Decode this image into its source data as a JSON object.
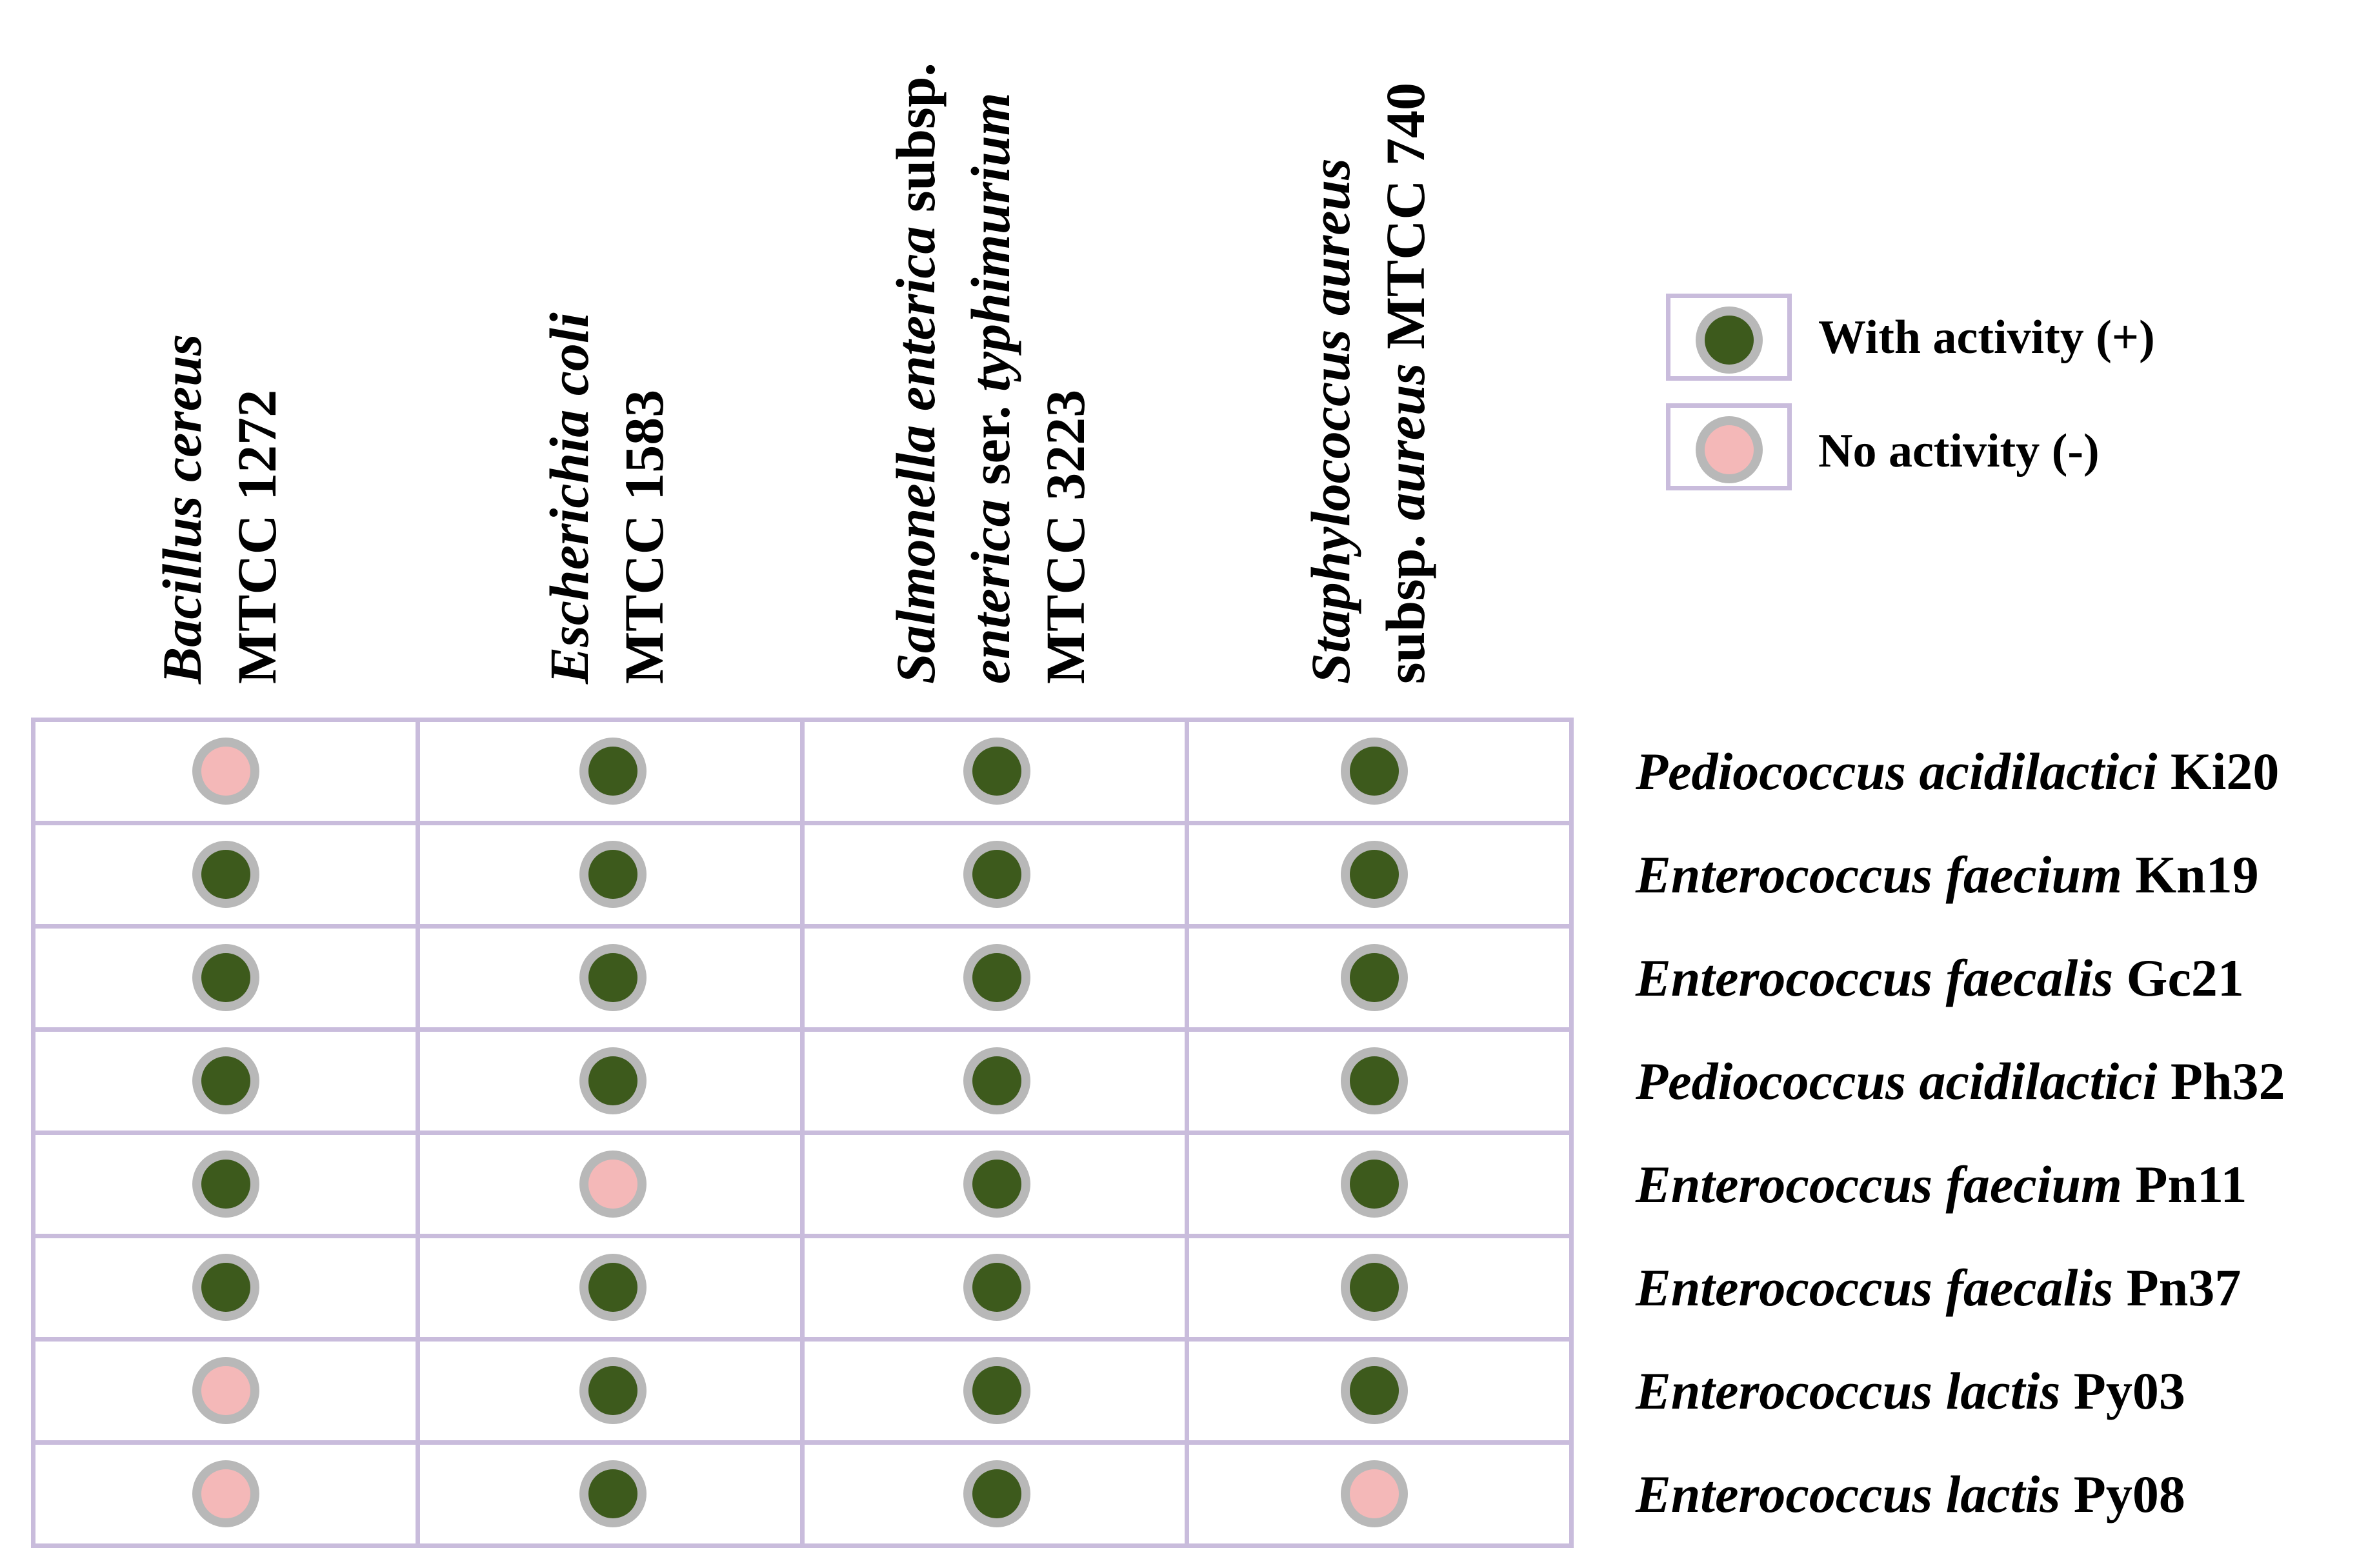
{
  "columns": [
    {
      "lines": [
        [
          {
            "t": "Bacillus cereus",
            "i": true
          }
        ],
        [
          {
            "t": "MTCC 1272",
            "i": false
          }
        ]
      ]
    },
    {
      "lines": [
        [
          {
            "t": "Escherichia coli",
            "i": true
          }
        ],
        [
          {
            "t": "MTCC 1583",
            "i": false
          }
        ]
      ]
    },
    {
      "lines": [
        [
          {
            "t": "Salmonella enterica",
            "i": true
          },
          {
            "t": " subsp.",
            "i": false
          }
        ],
        [
          {
            "t": "enterica",
            "i": true
          },
          {
            "t": " ser. ",
            "i": false
          },
          {
            "t": "typhimurium",
            "i": true
          }
        ],
        [
          {
            "t": "MTCC 3223",
            "i": false
          }
        ]
      ]
    },
    {
      "lines": [
        [
          {
            "t": "Staphylococcus aureus",
            "i": true
          }
        ],
        [
          {
            "t": "subsp. ",
            "i": false
          },
          {
            "t": "aureus",
            "i": true
          },
          {
            "t": " MTCC 740",
            "i": false
          }
        ]
      ]
    }
  ],
  "rows": [
    {
      "species": "Pediococcus acidilactici",
      "strain": "Ki20",
      "activity": [
        false,
        true,
        true,
        true
      ]
    },
    {
      "species": "Enterococcus faecium",
      "strain": "Kn19",
      "activity": [
        true,
        true,
        true,
        true
      ]
    },
    {
      "species": "Enterococcus faecalis",
      "strain": "Gc21",
      "activity": [
        true,
        true,
        true,
        true
      ]
    },
    {
      "species": "Pediococcus acidilactici",
      "strain": "Ph32",
      "activity": [
        true,
        true,
        true,
        true
      ]
    },
    {
      "species": "Enterococcus faecium",
      "strain": "Pn11",
      "activity": [
        true,
        false,
        true,
        true
      ]
    },
    {
      "species": "Enterococcus faecalis",
      "strain": "Pn37",
      "activity": [
        true,
        true,
        true,
        true
      ]
    },
    {
      "species": "Enterococcus lactis",
      "strain": "Py03",
      "activity": [
        false,
        true,
        true,
        true
      ]
    },
    {
      "species": "Enterococcus lactis",
      "strain": "Py08",
      "activity": [
        false,
        true,
        true,
        false
      ]
    }
  ],
  "legend": {
    "positive": "With activity (+)",
    "negative": "No activity (-)"
  },
  "colors": {
    "positive_fill": "#3d5a1c",
    "negative_fill": "#f4b8b8",
    "ring": "#b8b8b8",
    "grid_border": "#c9bcdc"
  }
}
